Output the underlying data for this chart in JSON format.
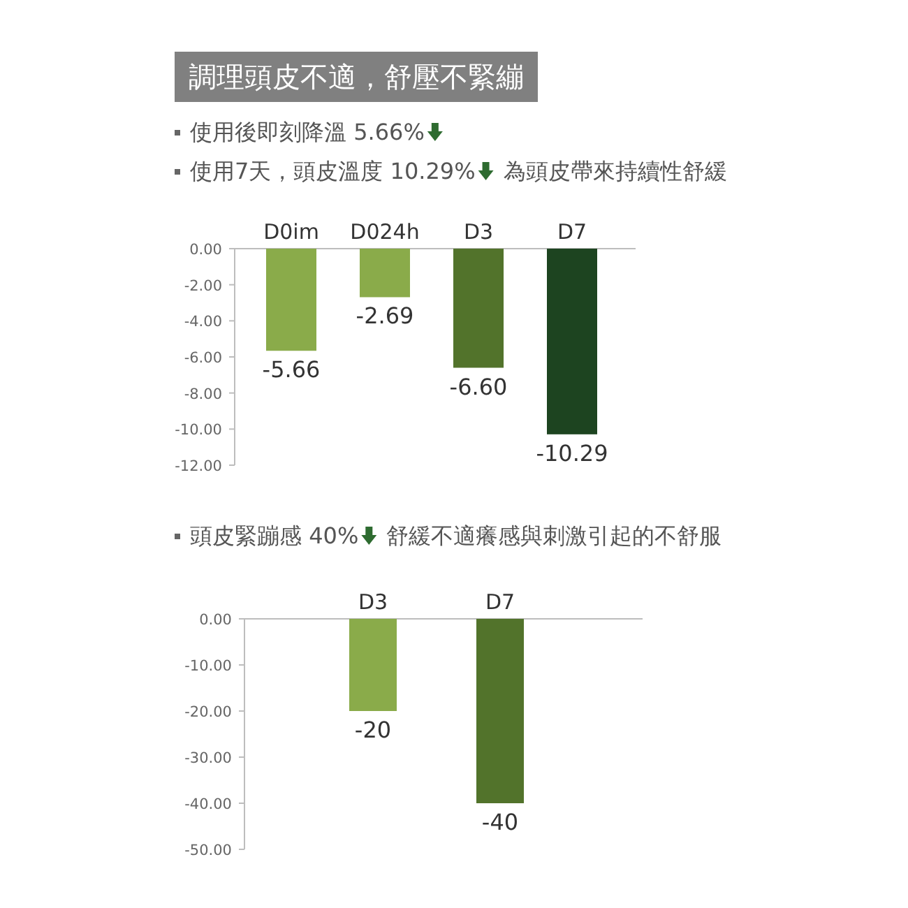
{
  "chart_data": [
    {
      "type": "bar",
      "title": "調理頭皮不適，舒壓不緊繃",
      "annotations": [
        "使用後即刻降溫 5.66%",
        "使用7天，頭皮溫度 10.29%",
        "為頭皮帶來持續性舒緩"
      ],
      "categories": [
        "D0im",
        "D024h",
        "D3",
        "D7"
      ],
      "values": [
        -5.66,
        -2.69,
        -6.6,
        -10.29
      ],
      "colors": [
        "#8aab4a",
        "#8aab4a",
        "#52732b",
        "#1d4420"
      ],
      "ylim": [
        -12,
        0
      ],
      "yticks": [
        {
          "value": 0,
          "label": "0.00"
        },
        {
          "value": -2,
          "label": "-2.00"
        },
        {
          "value": -4,
          "label": "-4.00"
        },
        {
          "value": -6,
          "label": "-6.00"
        },
        {
          "value": -8,
          "label": "-8.00"
        },
        {
          "value": -10,
          "label": "-10.00"
        },
        {
          "value": -12,
          "label": "-12.00"
        }
      ],
      "value_labels": [
        "-5.66",
        "-2.69",
        "-6.60",
        "-10.29"
      ]
    },
    {
      "type": "bar",
      "annotations": [
        "頭皮緊蹦感 40%",
        "舒緩不適癢感與刺激引起的不舒服"
      ],
      "categories": [
        "D3",
        "D7"
      ],
      "values": [
        -20,
        -40
      ],
      "colors": [
        "#8aab4a",
        "#52732b"
      ],
      "ylim": [
        -50,
        0
      ],
      "yticks": [
        {
          "value": 0,
          "label": "0.00"
        },
        {
          "value": -10,
          "label": "-10.00"
        },
        {
          "value": -20,
          "label": "-20.00"
        },
        {
          "value": -30,
          "label": "-30.00"
        },
        {
          "value": -40,
          "label": "-40.00"
        },
        {
          "value": -50,
          "label": "-50.00"
        }
      ],
      "value_labels": [
        "-20",
        "-40"
      ]
    }
  ]
}
